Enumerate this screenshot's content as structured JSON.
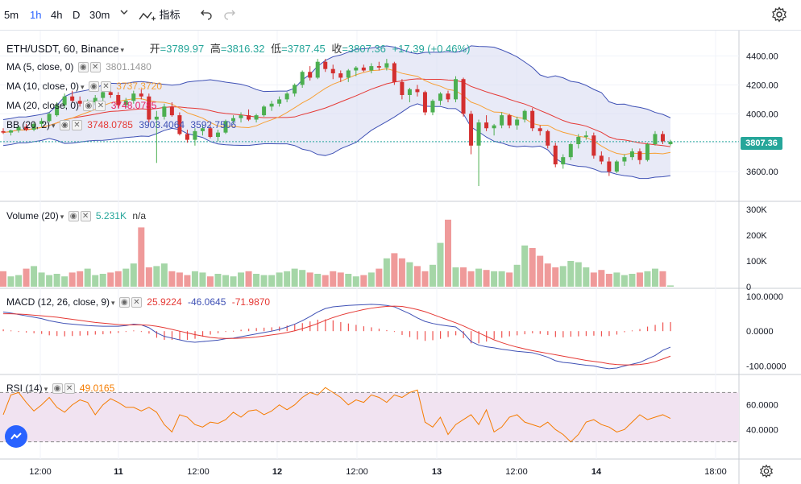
{
  "toolbar": {
    "intervals": [
      "5m",
      "1h",
      "4h",
      "D",
      "30m"
    ],
    "active_interval": "1h",
    "indicators_label": "指标",
    "icons": [
      "chevron-down-icon",
      "indicators-icon",
      "undo-icon",
      "redo-icon",
      "settings-icon"
    ]
  },
  "symbol": {
    "title": "ETH/USDT, 60, Binance",
    "open_label": "开",
    "open": "=3789.97",
    "high_label": "高",
    "high": "=3816.32",
    "low_label": "低",
    "low": "=3787.45",
    "close_label": "收",
    "close": "=3807.36",
    "change": "+17.39 (+0.46%)"
  },
  "indicators": {
    "ma5": {
      "label": "MA (5, close, 0)",
      "value": "3801.1480",
      "color": "#999999"
    },
    "ma10": {
      "label": "MA (10, close, 0)",
      "value": "3737.3720",
      "color": "#f7a035"
    },
    "ma20": {
      "label": "MA (20, close, 0)",
      "value": "3748.0785",
      "color": "#e91e63"
    },
    "bb": {
      "label": "BB (20, 2)",
      "v1": "3748.0785",
      "v2": "3903.4064",
      "v3": "3592.7506",
      "color1": "#e53935",
      "color2": "#3f51b5"
    },
    "volume": {
      "label": "Volume (20)",
      "value": "5.231K",
      "na": "n/a",
      "color": "#26a69a"
    },
    "macd": {
      "label": "MACD (12, 26, close, 9)",
      "hist": "25.9224",
      "macd": "-46.0645",
      "signal": "-71.9870",
      "c1": "#e53935",
      "c2": "#3f51b5"
    },
    "rsi": {
      "label": "RSI (14)",
      "value": "49.0165",
      "color": "#f57c00"
    }
  },
  "axes": {
    "price_ticks": [
      "4400.00",
      "4200.00",
      "4000.00",
      "3800.00",
      "3600.00"
    ],
    "price_label": "3807.36",
    "volume_ticks": [
      "300K",
      "200K",
      "100K",
      "0"
    ],
    "macd_ticks": [
      "100.0000",
      "0.0000",
      "-100.0000"
    ],
    "rsi_ticks": [
      "60.0000",
      "40.0000"
    ],
    "time_ticks": [
      "12:00",
      "11",
      "12:00",
      "12",
      "12:00",
      "13",
      "12:00",
      "14",
      "18:00"
    ]
  },
  "colors": {
    "up": "#26a69a",
    "down": "#ef5350",
    "up_candle": "#4caf50",
    "down_candle": "#d32f2f",
    "band_fill": "#d9dcf2",
    "rsi_fill": "#f1e3f1"
  },
  "chart_data": {
    "type": "candlestick",
    "title": "ETH/USDT, 60, Binance",
    "ylim": [
      3450,
      4520
    ],
    "candles": [
      [
        3880,
        3900,
        3860,
        3870
      ],
      [
        3870,
        3890,
        3850,
        3885
      ],
      [
        3885,
        3920,
        3870,
        3910
      ],
      [
        3910,
        3930,
        3880,
        3890
      ],
      [
        3890,
        3940,
        3880,
        3930
      ],
      [
        3930,
        3970,
        3910,
        3950
      ],
      [
        3950,
        4010,
        3940,
        4000
      ],
      [
        3990,
        4080,
        3980,
        4060
      ],
      [
        4060,
        4140,
        4040,
        4120
      ],
      [
        4120,
        4160,
        4080,
        4090
      ],
      [
        4090,
        4120,
        4050,
        4070
      ],
      [
        4070,
        4100,
        4040,
        4080
      ],
      [
        4080,
        4130,
        4060,
        4110
      ],
      [
        4110,
        4180,
        4090,
        4150
      ],
      [
        4150,
        4190,
        4110,
        4130
      ],
      [
        4130,
        4150,
        4040,
        4060
      ],
      [
        4060,
        4110,
        4040,
        4090
      ],
      [
        4090,
        4160,
        4070,
        4140
      ],
      [
        4140,
        4170,
        4100,
        4120
      ],
      [
        4120,
        4140,
        3940,
        3960
      ],
      [
        3960,
        4020,
        3660,
        3980
      ],
      [
        3980,
        4070,
        3960,
        4050
      ],
      [
        4050,
        4080,
        3980,
        3990
      ],
      [
        3990,
        4010,
        3850,
        3860
      ],
      [
        3860,
        3890,
        3800,
        3820
      ],
      [
        3820,
        3900,
        3780,
        3880
      ],
      [
        3880,
        3920,
        3850,
        3900
      ],
      [
        3900,
        3920,
        3830,
        3840
      ],
      [
        3840,
        3890,
        3810,
        3870
      ],
      [
        3870,
        3960,
        3860,
        3950
      ],
      [
        3950,
        3990,
        3930,
        3970
      ],
      [
        3970,
        4010,
        3940,
        3990
      ],
      [
        3990,
        4030,
        3950,
        3960
      ],
      [
        3960,
        4000,
        3940,
        3990
      ],
      [
        3990,
        4060,
        3980,
        4050
      ],
      [
        4050,
        4090,
        4020,
        4070
      ],
      [
        4070,
        4120,
        4050,
        4100
      ],
      [
        4100,
        4150,
        4080,
        4140
      ],
      [
        4140,
        4210,
        4120,
        4200
      ],
      [
        4200,
        4300,
        4180,
        4290
      ],
      [
        4290,
        4330,
        4230,
        4250
      ],
      [
        4250,
        4380,
        4240,
        4360
      ],
      [
        4360,
        4380,
        4290,
        4310
      ],
      [
        4310,
        4340,
        4240,
        4280
      ],
      [
        4280,
        4300,
        4220,
        4250
      ],
      [
        4250,
        4310,
        4220,
        4300
      ],
      [
        4300,
        4330,
        4260,
        4320
      ],
      [
        4320,
        4340,
        4290,
        4300
      ],
      [
        4300,
        4350,
        4280,
        4330
      ],
      [
        4330,
        4360,
        4300,
        4320
      ],
      [
        4320,
        4380,
        4300,
        4350
      ],
      [
        4350,
        4360,
        4200,
        4220
      ],
      [
        4220,
        4240,
        4100,
        4130
      ],
      [
        4130,
        4180,
        4080,
        4170
      ],
      [
        4170,
        4200,
        4120,
        4150
      ],
      [
        4150,
        4160,
        3990,
        4010
      ],
      [
        4010,
        4100,
        3990,
        4090
      ],
      [
        4090,
        4150,
        4060,
        4140
      ],
      [
        4140,
        4160,
        4080,
        4100
      ],
      [
        4100,
        4260,
        4080,
        4240
      ],
      [
        4240,
        4250,
        3980,
        4000
      ],
      [
        4000,
        4020,
        3720,
        3780
      ],
      [
        3780,
        3960,
        3500,
        3940
      ],
      [
        3940,
        3990,
        3880,
        3900
      ],
      [
        3900,
        3930,
        3850,
        3920
      ],
      [
        3920,
        4010,
        3900,
        3990
      ],
      [
        3990,
        4000,
        3900,
        3920
      ],
      [
        3920,
        3980,
        3890,
        3960
      ],
      [
        3960,
        4030,
        3940,
        4020
      ],
      [
        4020,
        4040,
        3880,
        3900
      ],
      [
        3900,
        3920,
        3850,
        3880
      ],
      [
        3880,
        3890,
        3760,
        3780
      ],
      [
        3780,
        3800,
        3630,
        3650
      ],
      [
        3650,
        3720,
        3620,
        3700
      ],
      [
        3700,
        3800,
        3680,
        3790
      ],
      [
        3790,
        3860,
        3760,
        3840
      ],
      [
        3840,
        3880,
        3820,
        3850
      ],
      [
        3850,
        3870,
        3690,
        3710
      ],
      [
        3710,
        3740,
        3650,
        3670
      ],
      [
        3670,
        3700,
        3570,
        3600
      ],
      [
        3600,
        3680,
        3590,
        3670
      ],
      [
        3670,
        3720,
        3640,
        3700
      ],
      [
        3700,
        3760,
        3680,
        3740
      ],
      [
        3740,
        3760,
        3650,
        3680
      ],
      [
        3680,
        3800,
        3670,
        3790
      ],
      [
        3790,
        3880,
        3780,
        3860
      ],
      [
        3860,
        3880,
        3790,
        3810
      ],
      [
        3790,
        3820,
        3780,
        3807.36
      ]
    ],
    "volume": [
      60,
      40,
      45,
      70,
      80,
      55,
      45,
      50,
      40,
      55,
      60,
      70,
      45,
      50,
      55,
      60,
      70,
      90,
      230,
      75,
      80,
      90,
      60,
      55,
      45,
      60,
      55,
      40,
      50,
      45,
      40,
      55,
      60,
      50,
      45,
      45,
      55,
      60,
      70,
      65,
      55,
      50,
      45,
      60,
      55,
      50,
      40,
      45,
      55,
      70,
      110,
      130,
      110,
      95,
      80,
      60,
      85,
      170,
      260,
      75,
      75,
      60,
      70,
      65,
      60,
      60,
      55,
      85,
      160,
      150,
      120,
      90,
      75,
      80,
      100,
      95,
      75,
      55,
      65,
      50,
      55,
      45,
      50,
      55,
      60,
      70,
      60,
      5
    ],
    "macd_line": [
      55,
      52,
      48,
      44,
      40,
      36,
      30,
      26,
      22,
      20,
      18,
      16,
      15,
      14,
      14,
      14,
      16,
      20,
      18,
      10,
      -5,
      -15,
      -20,
      -25,
      -30,
      -32,
      -30,
      -28,
      -26,
      -22,
      -20,
      -16,
      -12,
      -8,
      -4,
      0,
      5,
      12,
      20,
      30,
      42,
      55,
      65,
      70,
      72,
      74,
      75,
      76,
      77,
      76,
      74,
      70,
      60,
      50,
      38,
      28,
      22,
      18,
      15,
      12,
      -5,
      -30,
      -40,
      -45,
      -48,
      -52,
      -55,
      -58,
      -60,
      -62,
      -68,
      -75,
      -85,
      -90,
      -92,
      -95,
      -98,
      -100,
      -105,
      -108,
      -106,
      -100,
      -95,
      -90,
      -80,
      -70,
      -55,
      -46
    ],
    "signal_line": [
      50,
      50,
      49,
      48,
      46,
      44,
      42,
      40,
      37,
      34,
      31,
      28,
      25,
      23,
      21,
      19,
      18,
      18,
      18,
      17,
      14,
      10,
      5,
      0,
      -5,
      -10,
      -14,
      -18,
      -20,
      -21,
      -21,
      -20,
      -19,
      -17,
      -14,
      -11,
      -8,
      -4,
      1,
      7,
      14,
      22,
      31,
      39,
      46,
      52,
      57,
      62,
      66,
      69,
      71,
      72,
      71,
      67,
      62,
      56,
      48,
      40,
      32,
      24,
      15,
      5,
      -5,
      -15,
      -25,
      -33,
      -40,
      -46,
      -51,
      -56,
      -60,
      -64,
      -68,
      -72,
      -76,
      -80,
      -84,
      -87,
      -90,
      -94,
      -96,
      -97,
      -97,
      -96,
      -93,
      -88,
      -80,
      -72
    ],
    "rsi": [
      52,
      68,
      70,
      62,
      55,
      60,
      66,
      58,
      54,
      60,
      64,
      62,
      52,
      60,
      65,
      62,
      58,
      58,
      55,
      58,
      54,
      44,
      38,
      52,
      50,
      44,
      42,
      46,
      45,
      48,
      54,
      50,
      55,
      56,
      52,
      55,
      60,
      56,
      60,
      66,
      70,
      68,
      74,
      70,
      66,
      60,
      64,
      62,
      68,
      66,
      62,
      68,
      66,
      70,
      72,
      46,
      42,
      50,
      36,
      44,
      48,
      52,
      44,
      56,
      38,
      42,
      50,
      52,
      46,
      44,
      42,
      46,
      40,
      36,
      30,
      36,
      46,
      48,
      44,
      42,
      38,
      40,
      46,
      52,
      48,
      50,
      52,
      49
    ]
  }
}
